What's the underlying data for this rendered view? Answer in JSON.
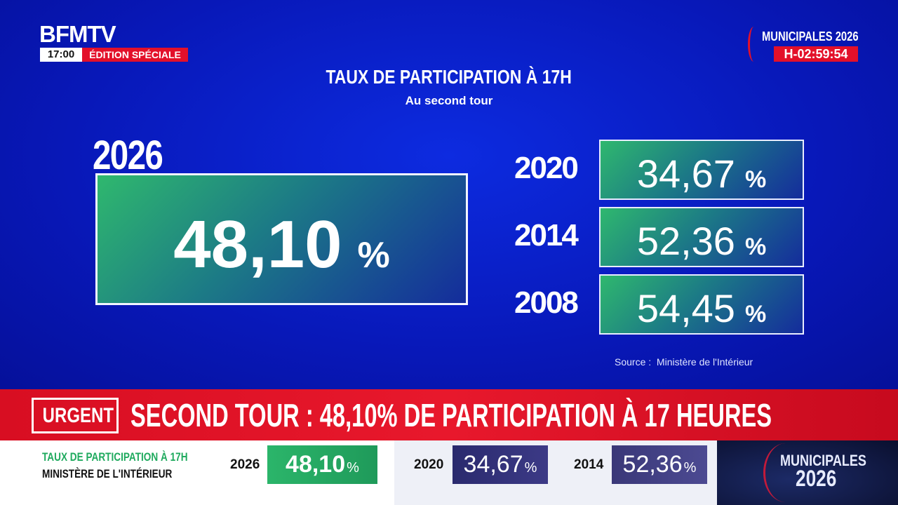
{
  "header": {
    "logo": "BFMTV",
    "time": "17:00",
    "edition": "ÉDITION SPÉCIALE"
  },
  "badge": {
    "title": "MUNICIPALES 2026",
    "countdown": "H-02:59:54"
  },
  "panel": {
    "title": "TAUX DE PARTICIPATION À 17H",
    "subtitle": "Au second tour",
    "main": {
      "year": "2026",
      "value": "48,10",
      "unit": "%"
    },
    "history": [
      {
        "year": "2020",
        "value": "34,67",
        "unit": "%"
      },
      {
        "year": "2014",
        "value": "52,36",
        "unit": "%"
      },
      {
        "year": "2008",
        "value": "54,45",
        "unit": "%"
      }
    ],
    "source": "Source :  Ministère de l'Intérieur"
  },
  "ticker": {
    "tag": "URGENT",
    "headline": "SECOND TOUR : 48,10% DE PARTICIPATION À 17 HEURES"
  },
  "bottom_bar": {
    "label": "TAUX DE PARTICIPATION À 17H",
    "source": "MINISTÈRE DE L'INTÉRIEUR",
    "items": [
      {
        "year": "2026",
        "value": "48,10",
        "unit": "%"
      },
      {
        "year": "2020",
        "value": "34,67",
        "unit": "%"
      },
      {
        "year": "2014",
        "value": "52,36",
        "unit": "%"
      }
    ],
    "logo": {
      "line1": "MUNICIPALES",
      "line2": "2026"
    }
  }
}
